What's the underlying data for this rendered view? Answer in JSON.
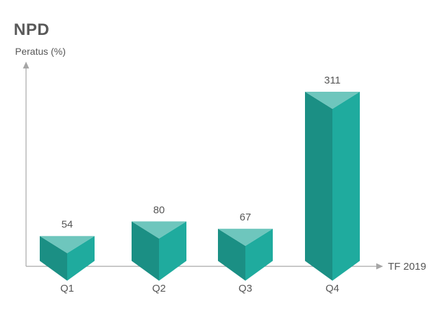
{
  "chart_data": {
    "type": "bar",
    "title": "NPD",
    "ylabel": "Peratus (%)",
    "xlabel": "TF 2019",
    "categories": [
      "Q1",
      "Q2",
      "Q3",
      "Q4"
    ],
    "values": [
      54,
      80,
      67,
      311
    ],
    "data_labels": [
      "54",
      "80",
      "67",
      "311"
    ],
    "ylim": [
      0,
      320
    ],
    "grid": false,
    "legend": "none",
    "bar_style": "3d-triangular-prism",
    "colors": {
      "front": "#1fab9e",
      "side": "#1b8f84",
      "top": "#6ec6bd",
      "axis": "#a6a6a6",
      "text": "#555555",
      "title": "#595959"
    }
  }
}
